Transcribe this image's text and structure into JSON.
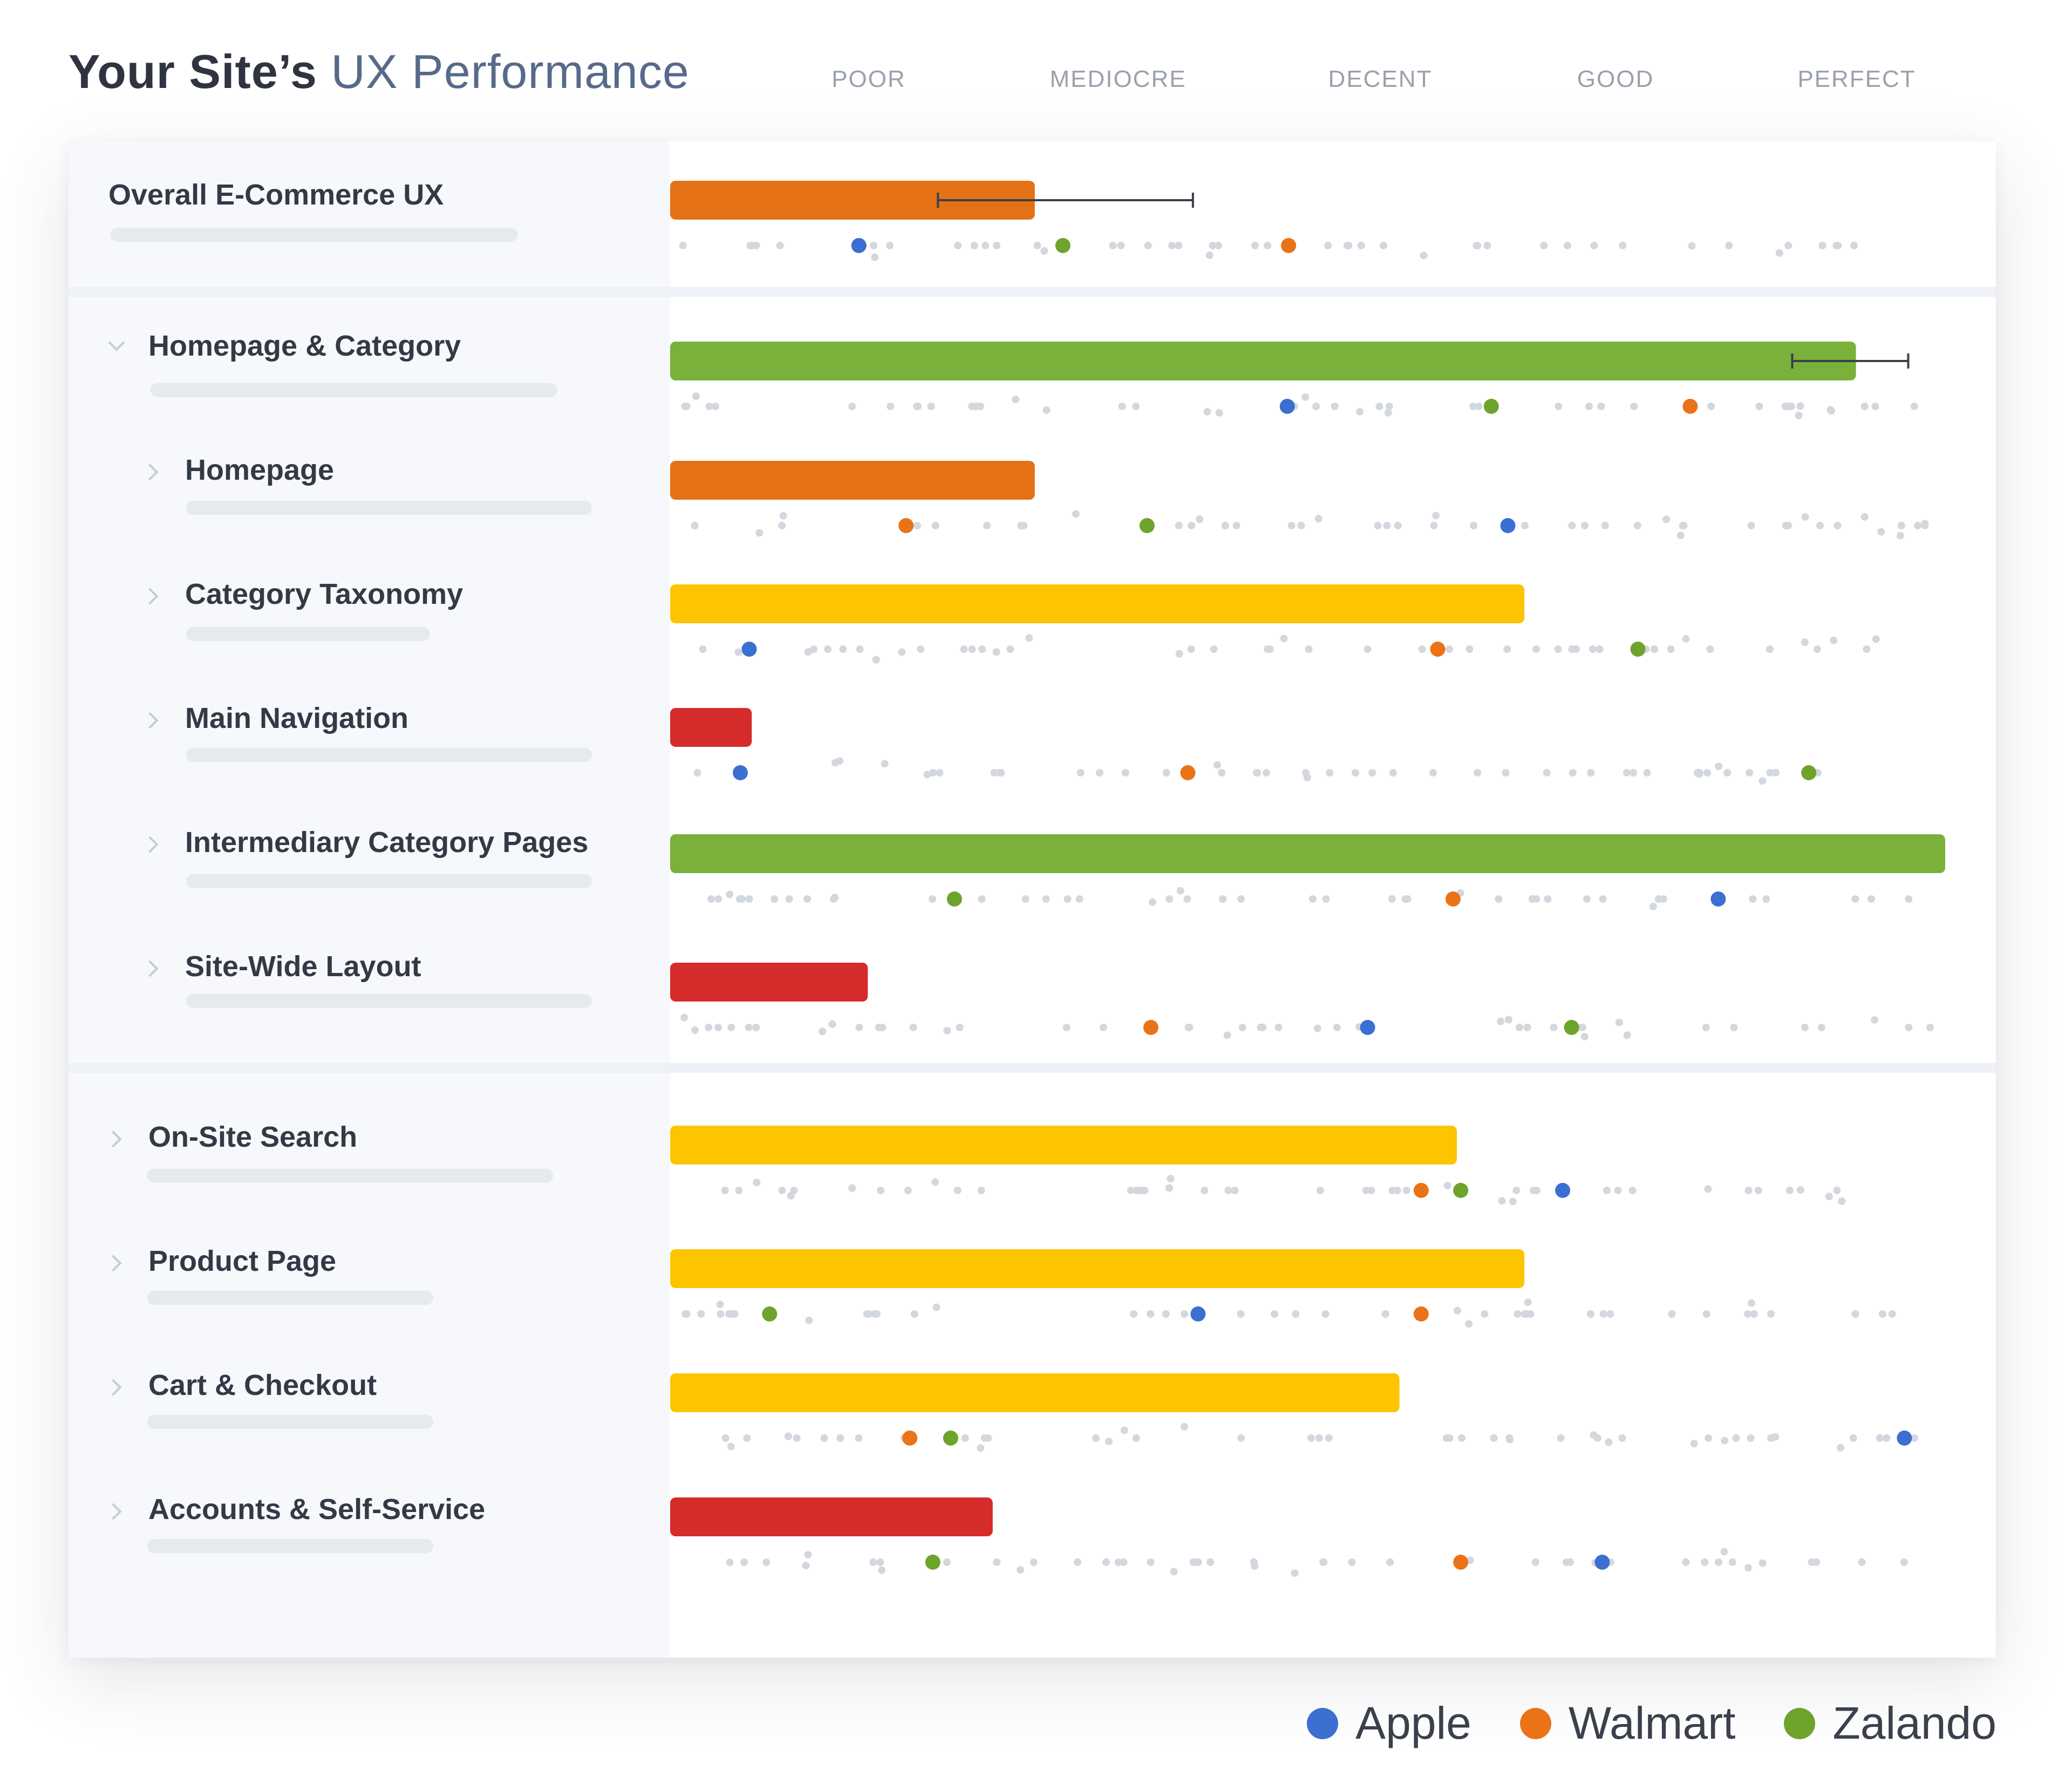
{
  "title": {
    "main": "Your Site’s",
    "accent": "UX Performance"
  },
  "scale_labels": [
    "POOR",
    "MEDIOCRE",
    "DECENT",
    "GOOD",
    "PERFECT"
  ],
  "legend": [
    {
      "name": "Apple",
      "color": "#3b6fd1"
    },
    {
      "name": "Walmart",
      "color": "#ea7317"
    },
    {
      "name": "Zalando",
      "color": "#6ea32c"
    }
  ],
  "colors": {
    "poor": "#d62b2b",
    "mediocre": "#e47116",
    "decent": "#fdc400",
    "good": "#79b13b"
  },
  "rows": [
    {
      "label": "Overall E-Commerce UX",
      "level": 0,
      "group": 1
    },
    {
      "label": "Homepage & Category",
      "level": 0,
      "group": 2,
      "expanded": true
    },
    {
      "label": "Homepage",
      "level": 1,
      "group": 2
    },
    {
      "label": "Category Taxonomy",
      "level": 1,
      "group": 2
    },
    {
      "label": "Main Navigation",
      "level": 1,
      "group": 2
    },
    {
      "label": "Intermediary Category Pages",
      "level": 1,
      "group": 2
    },
    {
      "label": "Site-Wide Layout",
      "level": 1,
      "group": 2
    },
    {
      "label": "On-Site Search",
      "level": 0,
      "group": 3
    },
    {
      "label": "Product Page",
      "level": 0,
      "group": 3
    },
    {
      "label": "Cart & Checkout",
      "level": 0,
      "group": 3
    },
    {
      "label": "Accounts & Self-Service",
      "level": 0,
      "group": 3
    }
  ],
  "chart_data": {
    "type": "bar",
    "orientation": "horizontal",
    "x_scale": [
      "POOR",
      "MEDIOCRE",
      "DECENT",
      "GOOD",
      "PERFECT"
    ],
    "xlim": [
      0,
      100
    ],
    "categories": [
      "Overall E-Commerce UX",
      "Homepage & Category",
      "Homepage",
      "Category Taxonomy",
      "Main Navigation",
      "Intermediary Category Pages",
      "Site-Wide Layout",
      "On-Site Search",
      "Product Page",
      "Cart & Checkout",
      "Accounts & Self-Service"
    ],
    "values": [
      28.6,
      93.0,
      28.6,
      67.0,
      6.4,
      100.0,
      15.5,
      61.7,
      67.0,
      57.2,
      25.3
    ],
    "bar_colors": [
      "mediocre",
      "good",
      "mediocre",
      "decent",
      "poor",
      "good",
      "poor",
      "decent",
      "decent",
      "decent",
      "poor"
    ],
    "error_ranges": [
      [
        21.0,
        41.0
      ],
      null,
      null,
      null,
      null,
      null,
      null,
      null,
      null,
      null,
      null
    ],
    "error_ranges_b": [
      null,
      [
        88.0,
        97.1
      ],
      null,
      null,
      null,
      null,
      null,
      null,
      null,
      null,
      null
    ],
    "series": [
      {
        "name": "Apple",
        "values": [
          14.8,
          48.4,
          65.7,
          6.2,
          5.5,
          82.2,
          54.7,
          70.0,
          41.4,
          96.8,
          73.1
        ]
      },
      {
        "name": "Walmart",
        "values": [
          48.5,
          80.0,
          18.5,
          60.2,
          40.6,
          61.4,
          37.7,
          58.9,
          58.9,
          18.8,
          62.0
        ]
      },
      {
        "name": "Zalando",
        "values": [
          30.8,
          64.4,
          37.4,
          75.9,
          89.3,
          22.3,
          70.7,
          62.0,
          7.8,
          22.0,
          20.6
        ]
      }
    ]
  }
}
